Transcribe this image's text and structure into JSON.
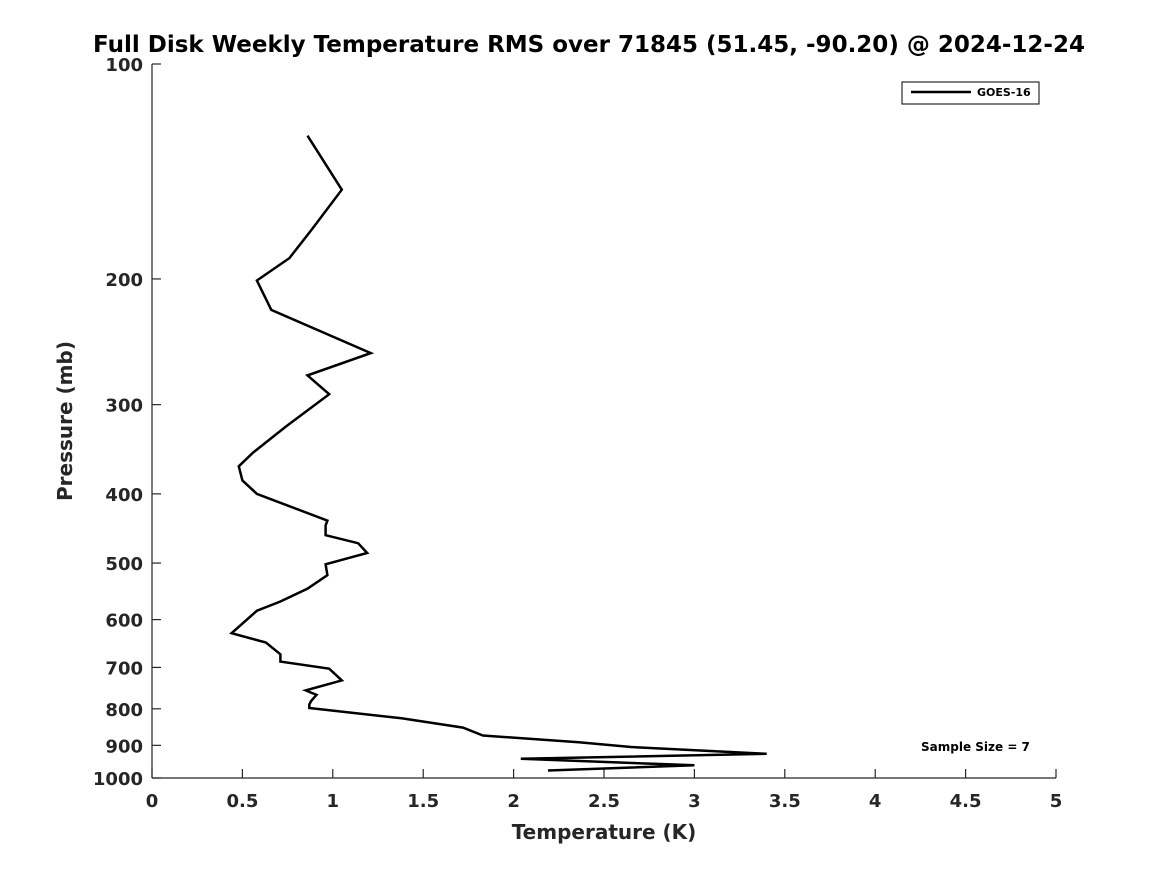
{
  "chart_data": {
    "type": "line",
    "title": "Full Disk Weekly Temperature RMS over 71845 (51.45, -90.20) @ 2024-12-24",
    "xlabel": "Temperature (K)",
    "ylabel": "Pressure (mb)",
    "xlim": [
      0,
      5
    ],
    "ylim": [
      100,
      1000
    ],
    "y_scale": "log",
    "y_reversed": true,
    "x_ticks": [
      "0",
      "0.5",
      "1",
      "1.5",
      "2",
      "2.5",
      "3",
      "3.5",
      "4",
      "4.5",
      "5"
    ],
    "y_ticks": [
      "100",
      "200",
      "300",
      "400",
      "500",
      "600",
      "700",
      "800",
      "900",
      "1000"
    ],
    "grid": false,
    "legend_position": "top-right",
    "annotation": "Sample Size = 7",
    "series": [
      {
        "name": "GOES-16",
        "color": "#000000",
        "points": [
          [
            0.86,
            126
          ],
          [
            1.05,
            150
          ],
          [
            0.88,
            171
          ],
          [
            0.76,
            187
          ],
          [
            0.58,
            201
          ],
          [
            0.66,
            221
          ],
          [
            1.21,
            254
          ],
          [
            0.86,
            273
          ],
          [
            0.98,
            290
          ],
          [
            0.74,
            322
          ],
          [
            0.56,
            350
          ],
          [
            0.48,
            366
          ],
          [
            0.5,
            383
          ],
          [
            0.58,
            400
          ],
          [
            0.97,
            436
          ],
          [
            0.96,
            443
          ],
          [
            0.96,
            457
          ],
          [
            1.14,
            469
          ],
          [
            1.19,
            484
          ],
          [
            0.96,
            502
          ],
          [
            0.97,
            520
          ],
          [
            0.86,
            543
          ],
          [
            0.71,
            566
          ],
          [
            0.58,
            583
          ],
          [
            0.44,
            627
          ],
          [
            0.63,
            646
          ],
          [
            0.71,
            671
          ],
          [
            0.71,
            687
          ],
          [
            0.98,
            703
          ],
          [
            1.05,
            730
          ],
          [
            0.85,
            754
          ],
          [
            0.91,
            765
          ],
          [
            0.88,
            780
          ],
          [
            0.87,
            789
          ],
          [
            0.87,
            798
          ],
          [
            1.38,
            825
          ],
          [
            1.72,
            850
          ],
          [
            1.83,
            872
          ],
          [
            2.36,
            891
          ],
          [
            2.65,
            905
          ],
          [
            3.4,
            925
          ],
          [
            2.04,
            940
          ],
          [
            3.0,
            960
          ],
          [
            2.19,
            976
          ]
        ]
      }
    ]
  }
}
